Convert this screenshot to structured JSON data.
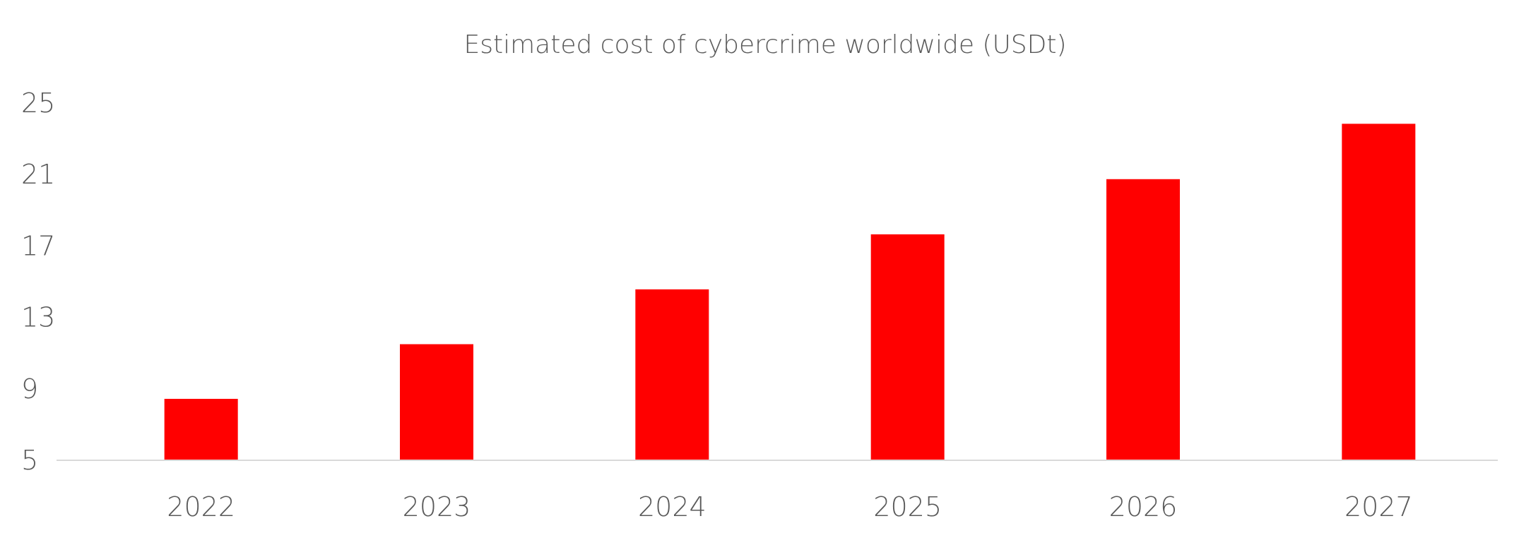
{
  "chart_data": {
    "type": "bar",
    "title": "Estimated cost of cybercrime worldwide (USDt)",
    "categories": [
      "2022",
      "2023",
      "2024",
      "2025",
      "2026",
      "2027"
    ],
    "values": [
      8.44,
      11.5,
      14.57,
      17.65,
      20.74,
      23.84
    ],
    "xlabel": "",
    "ylabel": "",
    "ylim": [
      5,
      25
    ],
    "yticks": [
      5,
      9,
      13,
      17,
      21,
      25
    ],
    "grid": false,
    "legend": "none",
    "bar_color": "#ff0000",
    "axis_color": "#d9d9d9",
    "text_color": "#595959"
  }
}
